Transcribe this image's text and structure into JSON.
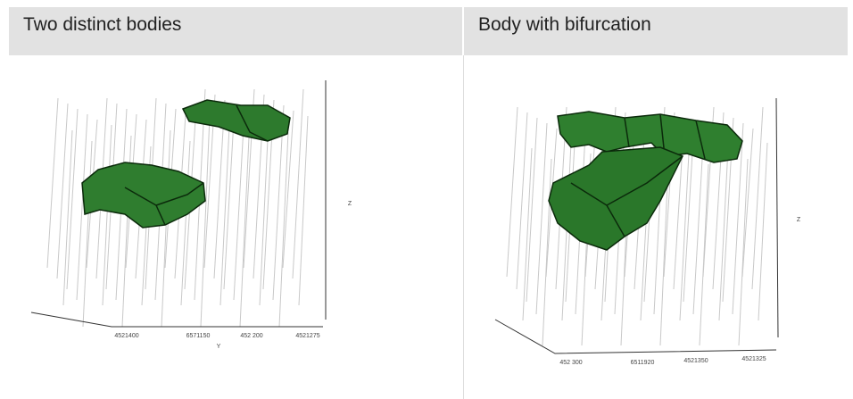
{
  "panels": [
    {
      "title": "Two distinct bodies",
      "axis_labels": [
        "4521400",
        "6571150",
        "452 200",
        "4521275",
        "Y",
        "Z"
      ]
    },
    {
      "title": "Body with bifurcation",
      "axis_labels": [
        "452 300",
        "6511920",
        "4521350",
        "4521325",
        "Z"
      ]
    }
  ]
}
